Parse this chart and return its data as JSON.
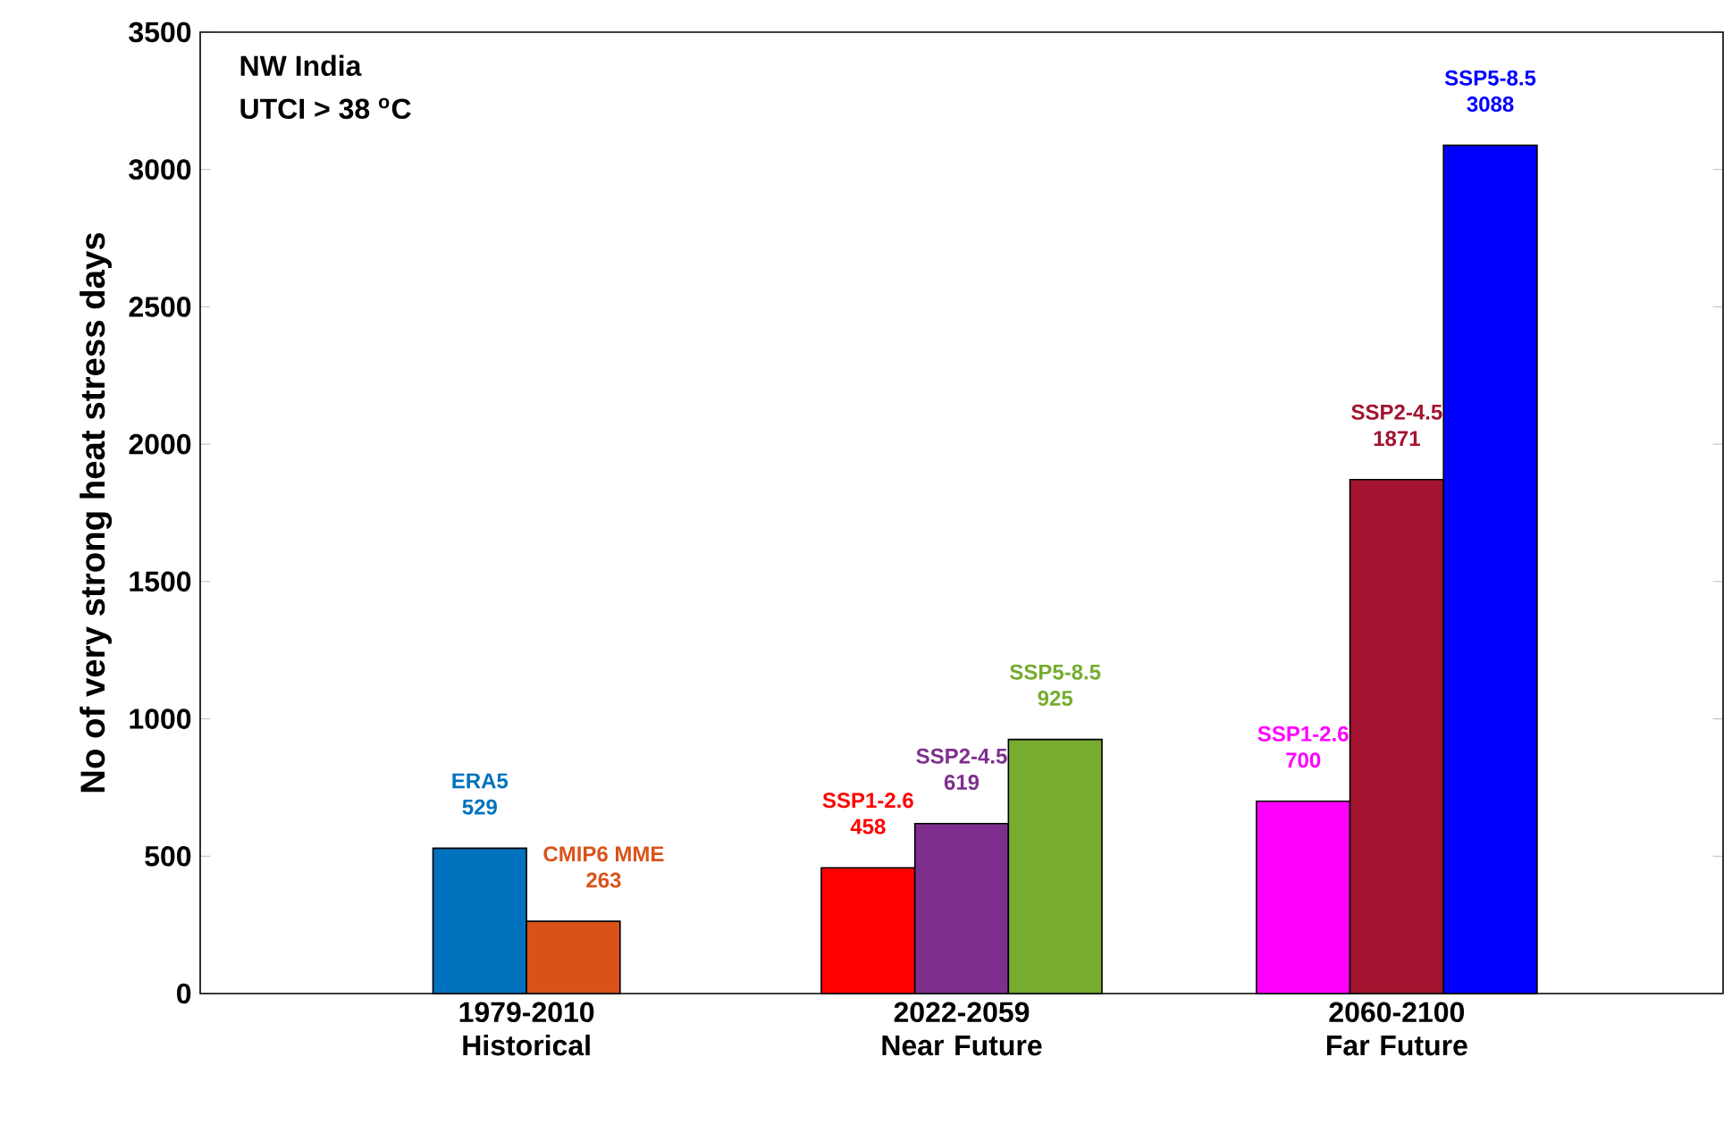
{
  "chart_data": {
    "type": "bar",
    "ylabel": "No of very strong heat stress days",
    "categories": [
      "1979-2010 Historical",
      "2022-2059 Near Future",
      "2060-2100 Far Future"
    ],
    "series": [
      {
        "name": "ERA5",
        "colors": [
          "#0072bd",
          null,
          null
        ],
        "values": [
          529,
          null,
          null
        ]
      },
      {
        "name": "CMIP6 MME",
        "colors": [
          "#d95319",
          null,
          null
        ],
        "values": [
          263,
          null,
          null
        ]
      },
      {
        "name": "SSP1-2.6",
        "colors": [
          null,
          "#ff0000",
          "#ff00ff"
        ],
        "values": [
          null,
          458,
          700
        ]
      },
      {
        "name": "SSP2-4.5",
        "colors": [
          null,
          "#7e2f8e",
          "#a2142f"
        ],
        "values": [
          null,
          619,
          1871
        ]
      },
      {
        "name": "SSP5-8.5",
        "colors": [
          null,
          "#77ac30",
          "#0000ff"
        ],
        "values": [
          null,
          925,
          3088
        ]
      }
    ],
    "ylim": [
      0,
      3500
    ],
    "yticks": [
      0,
      500,
      1000,
      1500,
      2000,
      2500,
      3000,
      3500
    ],
    "data_labels": true,
    "annotations": [
      "NW India",
      "UTCI > 38 $^{o}$C"
    ]
  }
}
